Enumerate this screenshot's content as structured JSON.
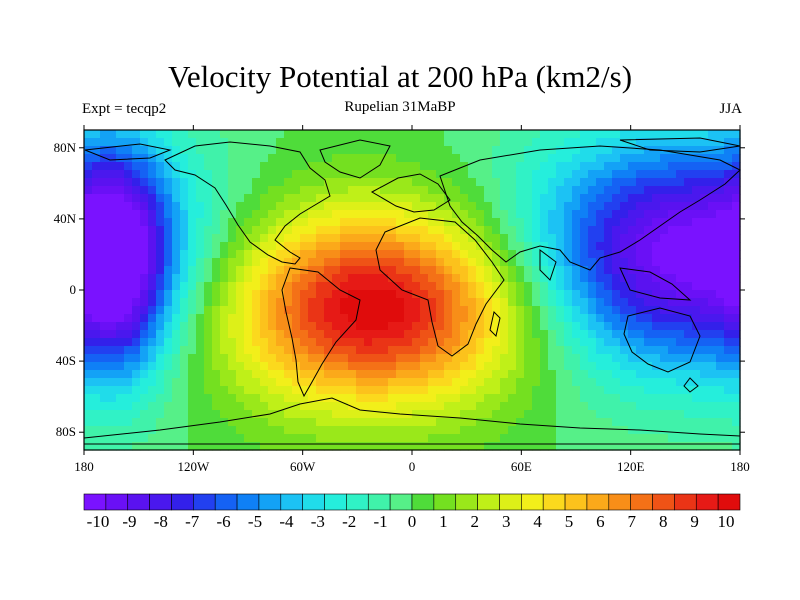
{
  "title": "Velocity Potential at 200 hPa (km2/s)",
  "subtitle": "Rupelian  31MaBP",
  "left_label": "Expt = tecqp2",
  "right_label": "JJA",
  "map": {
    "projection": "cylindrical equidistant",
    "lon_range": [
      -180,
      180
    ],
    "lat_range": [
      -90,
      90
    ],
    "y_ticks": [
      {
        "lat": 80,
        "label": "80N"
      },
      {
        "lat": 40,
        "label": "40N"
      },
      {
        "lat": 0,
        "label": "0"
      },
      {
        "lat": -40,
        "label": "40S"
      },
      {
        "lat": -80,
        "label": "80S"
      }
    ],
    "x_ticks": [
      {
        "lon": -180,
        "label": "180"
      },
      {
        "lon": -120,
        "label": "120W"
      },
      {
        "lon": -60,
        "label": "60W"
      },
      {
        "lon": 0,
        "label": "0"
      },
      {
        "lon": 60,
        "label": "60E"
      },
      {
        "lon": 120,
        "label": "120E"
      },
      {
        "lon": 180,
        "label": "180"
      }
    ],
    "field_centers": [
      {
        "lon": -20,
        "lat": -10,
        "value": 10,
        "sx": 60,
        "sy": 38
      },
      {
        "lon": 150,
        "lat": 20,
        "value": -10,
        "sx": 62,
        "sy": 45
      },
      {
        "lon": -160,
        "lat": 15,
        "value": -6,
        "sx": 18,
        "sy": 45
      }
    ]
  },
  "colorbar": {
    "labels": [
      "-10",
      "-9",
      "-8",
      "-7",
      "-6",
      "-5",
      "-4",
      "-3",
      "-2",
      "-1",
      "0",
      "1",
      "2",
      "3",
      "4",
      "5",
      "6",
      "7",
      "8",
      "9",
      "10"
    ],
    "colors": [
      "#7a12ff",
      "#6a10f6",
      "#5a12f0",
      "#4a18ee",
      "#3320ea",
      "#2240f0",
      "#1562f4",
      "#0f80f6",
      "#13a2f6",
      "#1cc2f4",
      "#20dcea",
      "#25eedc",
      "#30f2c6",
      "#40f2aa",
      "#56f088",
      "#4fdc3a",
      "#74e020",
      "#9ae81a",
      "#bff018",
      "#ddf018",
      "#f2ef1a",
      "#fbd91d",
      "#fcc21c",
      "#fba91a",
      "#f88e18",
      "#f47117",
      "#ef5316",
      "#ea3416",
      "#e61a16",
      "#e00c0c"
    ]
  }
}
